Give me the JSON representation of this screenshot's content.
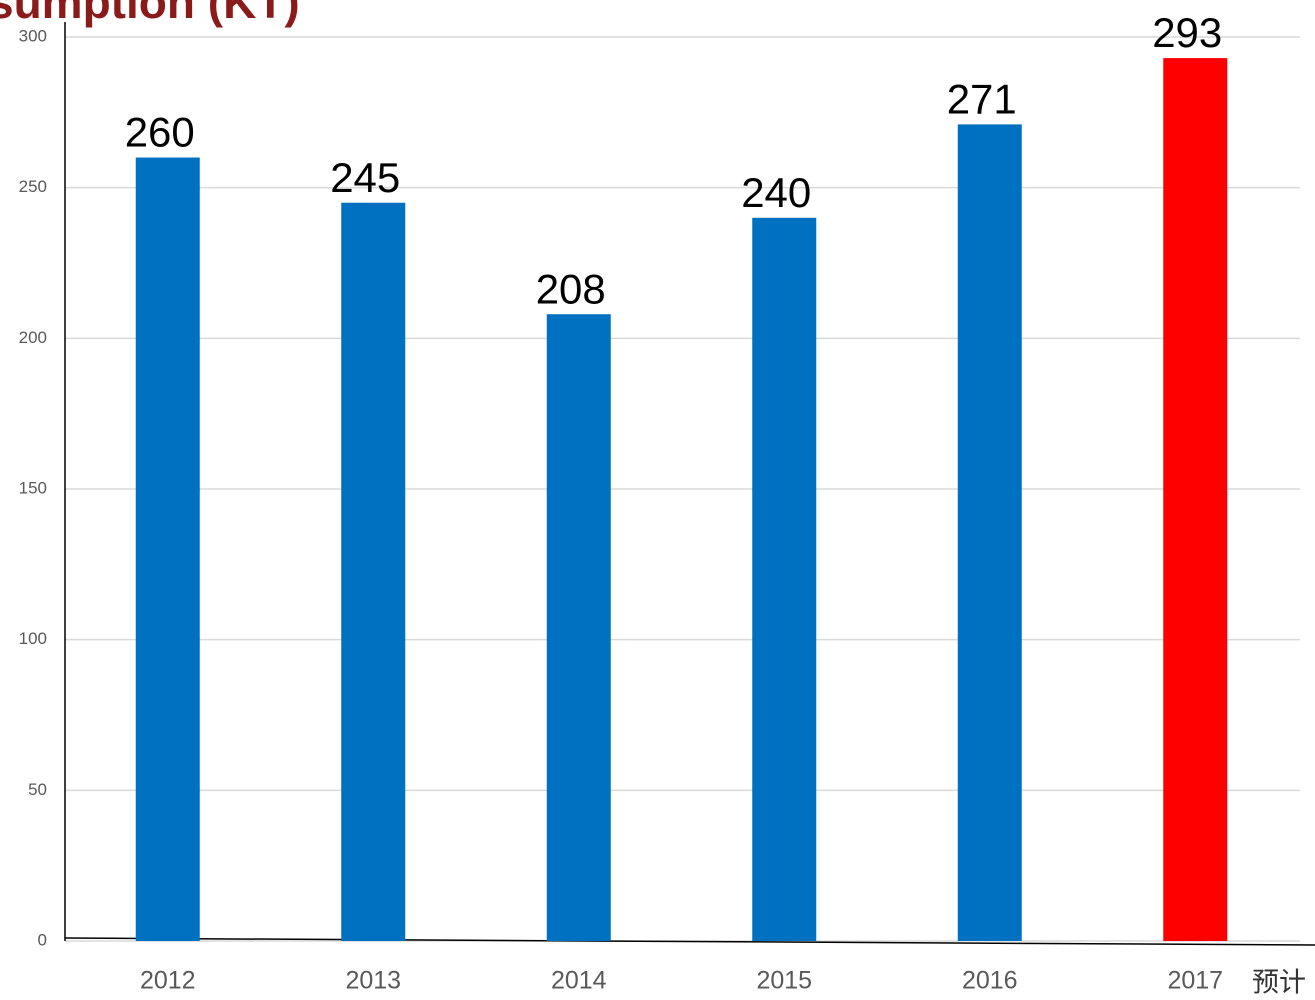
{
  "chart_data": {
    "type": "bar",
    "title": "sumption (KT)",
    "categories": [
      "2012",
      "2013",
      "2014",
      "2015",
      "2016",
      "2017"
    ],
    "values": [
      260,
      245,
      208,
      240,
      271,
      293
    ],
    "colors": [
      "#0070c0",
      "#0070c0",
      "#0070c0",
      "#0070c0",
      "#0070c0",
      "#ff0000"
    ],
    "annotation": "预计",
    "ylim": [
      0,
      300
    ],
    "yticks": [
      0,
      50,
      100,
      150,
      200,
      250,
      300
    ],
    "grid": true
  }
}
